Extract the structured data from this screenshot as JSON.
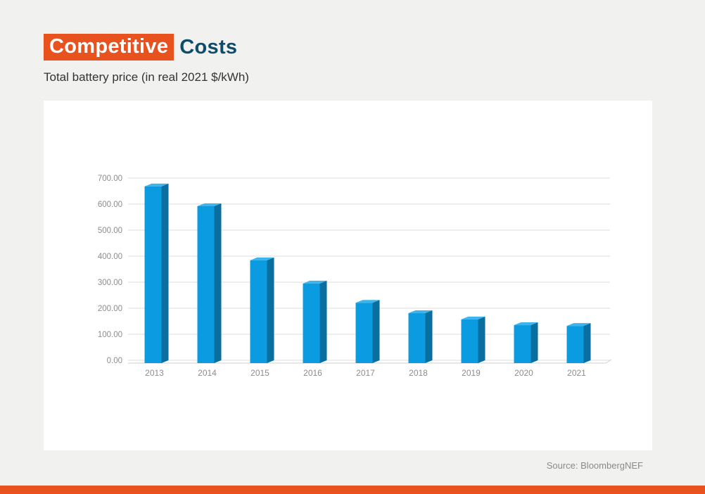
{
  "title_highlight": "Competitive",
  "title_rest": "Costs",
  "subtitle": "Total battery price (in real 2021 $/kWh)",
  "source": "Source: BloombergNEF",
  "colors": {
    "accent": "#e8521f",
    "title_dark": "#0d4d6b",
    "bar_front": "#0b9be0",
    "bar_side": "#0a6f9e",
    "bar_top": "#3db5ec"
  },
  "chart_data": {
    "type": "bar",
    "categories": [
      "2013",
      "2014",
      "2015",
      "2016",
      "2017",
      "2018",
      "2019",
      "2020",
      "2021"
    ],
    "values": [
      668,
      592,
      384,
      295,
      221,
      181,
      157,
      135,
      132
    ],
    "ylim": [
      0,
      700
    ],
    "yticks": [
      "0.00",
      "100.00",
      "200.00",
      "300.00",
      "400.00",
      "500.00",
      "600.00",
      "700.00"
    ],
    "grid": true,
    "legend": "none"
  }
}
